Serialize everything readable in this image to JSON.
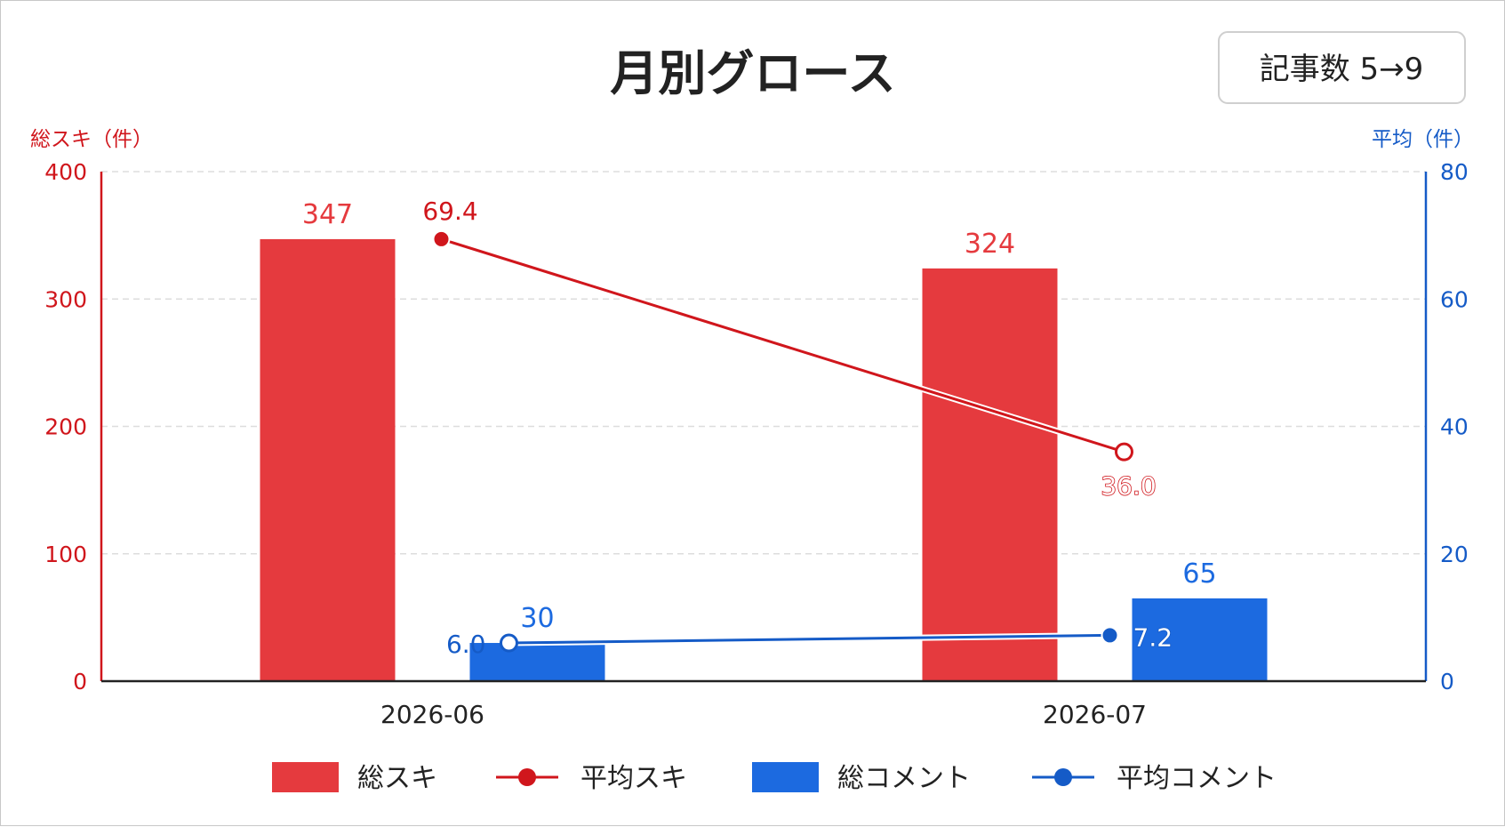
{
  "chart_data": {
    "type": "bar",
    "title": "月別グロース",
    "badge": "記事数 5→9",
    "categories": [
      "2026-06",
      "2026-07"
    ],
    "series": [
      {
        "name": "総スキ",
        "kind": "bar",
        "axis": "left",
        "color": "#e53a3e",
        "values": [
          347,
          324
        ]
      },
      {
        "name": "総コメント",
        "kind": "bar",
        "axis": "left",
        "color": "#1c6ae0",
        "values": [
          30,
          65
        ]
      },
      {
        "name": "平均スキ",
        "kind": "line",
        "axis": "right",
        "color": "#d0161c",
        "values": [
          69.4,
          36.0
        ],
        "labels": [
          "69.4",
          "36.0"
        ]
      },
      {
        "name": "平均コメント",
        "kind": "line",
        "axis": "right",
        "color": "#155bc7",
        "values": [
          6.0,
          7.2
        ],
        "labels": [
          "6.0",
          "7.2"
        ]
      }
    ],
    "y_left": {
      "label": "総スキ（件）",
      "ylim": [
        0,
        400
      ],
      "ticks": [
        0,
        100,
        200,
        300,
        400
      ],
      "color": "#d0161c"
    },
    "y_right": {
      "label": "平均（件）",
      "ylim": [
        0,
        80
      ],
      "ticks": [
        0,
        20,
        40,
        60,
        80
      ],
      "color": "#155bc7"
    },
    "grid": true,
    "legend_position": "bottom",
    "legend": [
      "総スキ",
      "平均スキ",
      "総コメント",
      "平均コメント"
    ]
  }
}
